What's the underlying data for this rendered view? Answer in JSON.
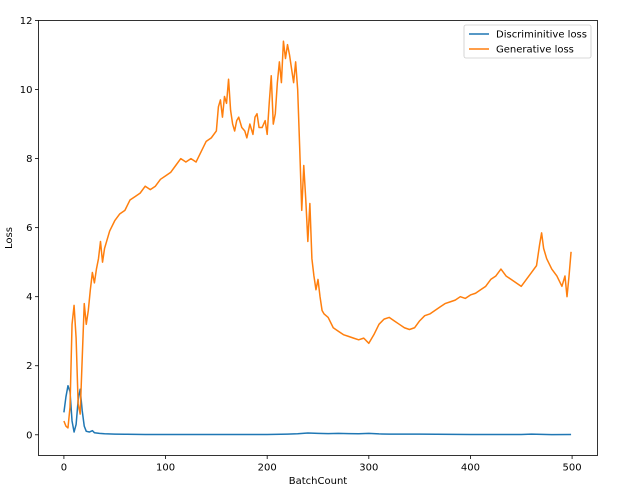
{
  "chart_data": {
    "type": "line",
    "title": "",
    "xlabel": "BatchCount",
    "ylabel": "Loss",
    "xlim": [
      -25,
      525
    ],
    "ylim": [
      -0.6,
      12
    ],
    "xticks": [
      0,
      100,
      200,
      300,
      400,
      500
    ],
    "yticks": [
      0,
      2,
      4,
      6,
      8,
      10,
      12
    ],
    "grid": false,
    "legend_position": "top-right",
    "series": [
      {
        "name": "Discriminitive loss",
        "color": "#1f77b4",
        "points": [
          [
            0,
            0.65
          ],
          [
            2,
            1.1
          ],
          [
            4,
            1.42
          ],
          [
            6,
            1.25
          ],
          [
            8,
            0.4
          ],
          [
            10,
            0.08
          ],
          [
            12,
            0.3
          ],
          [
            14,
            1.0
          ],
          [
            16,
            1.32
          ],
          [
            18,
            0.7
          ],
          [
            20,
            0.25
          ],
          [
            22,
            0.1
          ],
          [
            25,
            0.08
          ],
          [
            28,
            0.12
          ],
          [
            30,
            0.06
          ],
          [
            35,
            0.04
          ],
          [
            40,
            0.03
          ],
          [
            50,
            0.02
          ],
          [
            60,
            0.015
          ],
          [
            80,
            0.01
          ],
          [
            100,
            0.01
          ],
          [
            150,
            0.01
          ],
          [
            200,
            0.01
          ],
          [
            220,
            0.02
          ],
          [
            230,
            0.03
          ],
          [
            240,
            0.05
          ],
          [
            250,
            0.04
          ],
          [
            260,
            0.035
          ],
          [
            270,
            0.04
          ],
          [
            280,
            0.035
          ],
          [
            290,
            0.03
          ],
          [
            300,
            0.04
          ],
          [
            310,
            0.025
          ],
          [
            320,
            0.02
          ],
          [
            350,
            0.02
          ],
          [
            400,
            0.01
          ],
          [
            450,
            0.01
          ],
          [
            460,
            0.02
          ],
          [
            480,
            0.005
          ],
          [
            499,
            0.01
          ]
        ]
      },
      {
        "name": "Generative loss",
        "color": "#ff7f0e",
        "points": [
          [
            0,
            0.4
          ],
          [
            2,
            0.25
          ],
          [
            4,
            0.2
          ],
          [
            6,
            0.8
          ],
          [
            8,
            3.2
          ],
          [
            10,
            3.75
          ],
          [
            12,
            2.8
          ],
          [
            14,
            0.9
          ],
          [
            16,
            0.6
          ],
          [
            18,
            2.2
          ],
          [
            20,
            3.8
          ],
          [
            22,
            3.2
          ],
          [
            24,
            3.6
          ],
          [
            26,
            4.2
          ],
          [
            28,
            4.7
          ],
          [
            30,
            4.4
          ],
          [
            32,
            4.8
          ],
          [
            34,
            5.1
          ],
          [
            36,
            5.6
          ],
          [
            38,
            5.0
          ],
          [
            40,
            5.4
          ],
          [
            42,
            5.6
          ],
          [
            45,
            5.9
          ],
          [
            50,
            6.2
          ],
          [
            55,
            6.4
          ],
          [
            60,
            6.5
          ],
          [
            65,
            6.8
          ],
          [
            70,
            6.9
          ],
          [
            75,
            7.0
          ],
          [
            80,
            7.2
          ],
          [
            85,
            7.1
          ],
          [
            90,
            7.2
          ],
          [
            95,
            7.4
          ],
          [
            100,
            7.5
          ],
          [
            105,
            7.6
          ],
          [
            110,
            7.8
          ],
          [
            115,
            8.0
          ],
          [
            120,
            7.9
          ],
          [
            125,
            8.0
          ],
          [
            130,
            7.9
          ],
          [
            135,
            8.2
          ],
          [
            140,
            8.5
          ],
          [
            145,
            8.6
          ],
          [
            150,
            8.8
          ],
          [
            152,
            9.5
          ],
          [
            154,
            9.7
          ],
          [
            156,
            9.2
          ],
          [
            158,
            9.8
          ],
          [
            160,
            9.6
          ],
          [
            162,
            10.3
          ],
          [
            164,
            9.4
          ],
          [
            166,
            9.0
          ],
          [
            168,
            8.8
          ],
          [
            170,
            9.1
          ],
          [
            172,
            9.2
          ],
          [
            175,
            8.9
          ],
          [
            178,
            8.8
          ],
          [
            180,
            8.6
          ],
          [
            183,
            9.0
          ],
          [
            186,
            8.7
          ],
          [
            188,
            9.2
          ],
          [
            190,
            9.3
          ],
          [
            192,
            8.9
          ],
          [
            195,
            8.9
          ],
          [
            198,
            9.1
          ],
          [
            200,
            8.7
          ],
          [
            202,
            9.6
          ],
          [
            204,
            10.4
          ],
          [
            206,
            9.0
          ],
          [
            208,
            9.3
          ],
          [
            210,
            10.2
          ],
          [
            212,
            10.8
          ],
          [
            214,
            10.2
          ],
          [
            216,
            11.4
          ],
          [
            218,
            10.9
          ],
          [
            220,
            11.3
          ],
          [
            222,
            11.0
          ],
          [
            224,
            10.6
          ],
          [
            226,
            10.2
          ],
          [
            228,
            10.8
          ],
          [
            230,
            10.0
          ],
          [
            232,
            8.3
          ],
          [
            234,
            6.5
          ],
          [
            236,
            7.8
          ],
          [
            238,
            6.8
          ],
          [
            240,
            5.6
          ],
          [
            242,
            6.7
          ],
          [
            244,
            5.1
          ],
          [
            246,
            4.6
          ],
          [
            248,
            4.2
          ],
          [
            250,
            4.5
          ],
          [
            252,
            4.0
          ],
          [
            254,
            3.6
          ],
          [
            256,
            3.5
          ],
          [
            260,
            3.4
          ],
          [
            265,
            3.1
          ],
          [
            270,
            3.0
          ],
          [
            275,
            2.9
          ],
          [
            280,
            2.85
          ],
          [
            285,
            2.8
          ],
          [
            290,
            2.75
          ],
          [
            295,
            2.8
          ],
          [
            300,
            2.65
          ],
          [
            305,
            2.9
          ],
          [
            310,
            3.2
          ],
          [
            315,
            3.35
          ],
          [
            320,
            3.4
          ],
          [
            325,
            3.3
          ],
          [
            330,
            3.2
          ],
          [
            335,
            3.1
          ],
          [
            340,
            3.05
          ],
          [
            345,
            3.1
          ],
          [
            350,
            3.3
          ],
          [
            355,
            3.45
          ],
          [
            360,
            3.5
          ],
          [
            365,
            3.6
          ],
          [
            370,
            3.7
          ],
          [
            375,
            3.8
          ],
          [
            380,
            3.85
          ],
          [
            385,
            3.9
          ],
          [
            390,
            4.0
          ],
          [
            395,
            3.95
          ],
          [
            400,
            4.05
          ],
          [
            405,
            4.1
          ],
          [
            410,
            4.2
          ],
          [
            415,
            4.3
          ],
          [
            420,
            4.5
          ],
          [
            425,
            4.6
          ],
          [
            430,
            4.8
          ],
          [
            435,
            4.6
          ],
          [
            440,
            4.5
          ],
          [
            445,
            4.4
          ],
          [
            450,
            4.3
          ],
          [
            455,
            4.5
          ],
          [
            460,
            4.7
          ],
          [
            465,
            4.9
          ],
          [
            468,
            5.5
          ],
          [
            470,
            5.85
          ],
          [
            472,
            5.4
          ],
          [
            475,
            5.1
          ],
          [
            480,
            4.8
          ],
          [
            485,
            4.6
          ],
          [
            490,
            4.3
          ],
          [
            493,
            4.6
          ],
          [
            495,
            4.0
          ],
          [
            497,
            4.6
          ],
          [
            499,
            5.3
          ]
        ]
      }
    ]
  }
}
